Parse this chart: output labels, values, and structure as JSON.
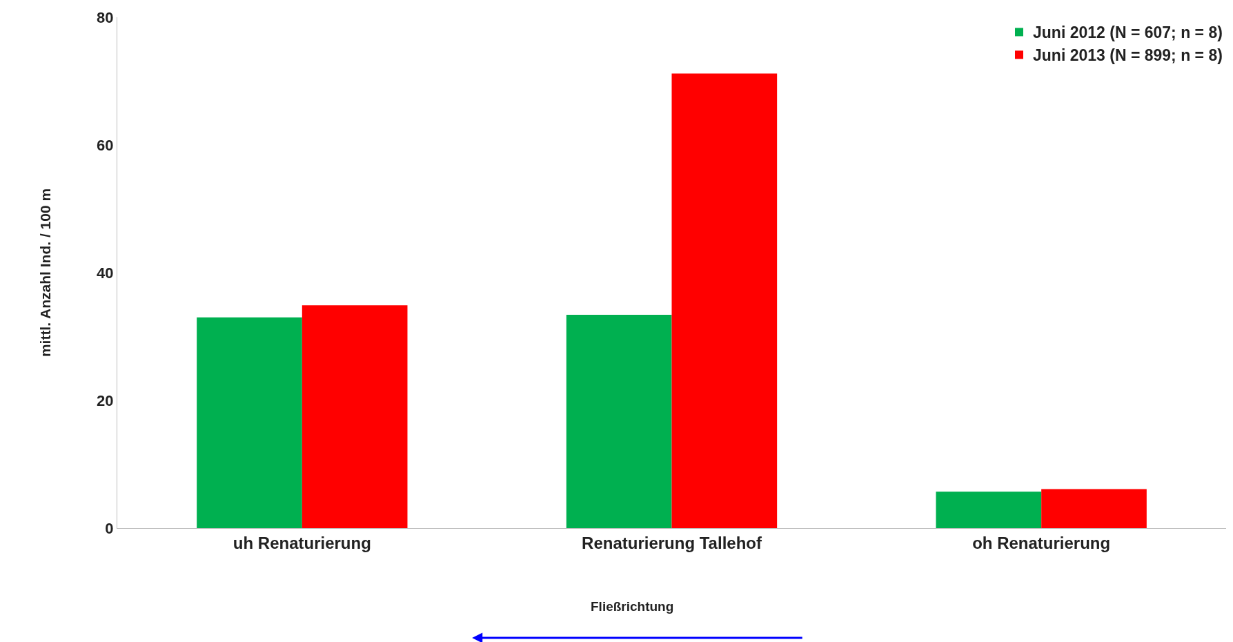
{
  "chart_data": {
    "type": "bar",
    "ylabel": "mittl. Anzahl Ind. / 100 m",
    "categories": [
      "uh Renaturierung",
      "Renaturierung Tallehof",
      "oh Renaturierung"
    ],
    "series": [
      {
        "name": "Juni 2012 (N = 607; n = 8)",
        "color": "#00b050",
        "values": [
          33.0,
          33.4,
          5.7
        ]
      },
      {
        "name": "Juni 2013 (N = 899; n = 8)",
        "color": "#ff0000",
        "values": [
          34.9,
          71.2,
          6.1
        ]
      }
    ],
    "ylim": [
      0,
      80
    ],
    "yticks": [
      0,
      20,
      40,
      60,
      80
    ],
    "legend": "top right",
    "annotations": [
      "Fließrichtung"
    ]
  }
}
